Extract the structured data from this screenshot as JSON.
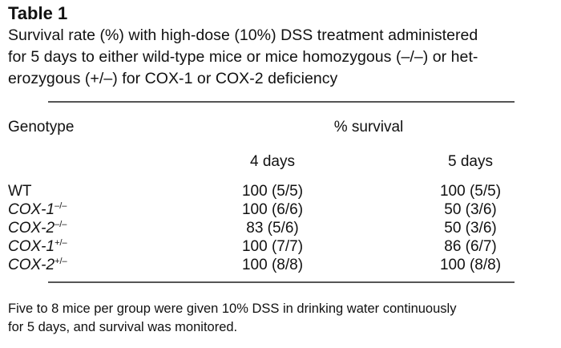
{
  "title": "Table 1",
  "caption": [
    "Survival rate (%) with high-dose (10%) DSS treatment administered",
    "for 5 days to either wild-type mice or mice homozygous (–/–) or het-",
    "erozygous (+/–) for COX-1 or COX-2 deficiency"
  ],
  "table": {
    "header": {
      "genotype": "Genotype",
      "group": "% survival",
      "col4": "4 days",
      "col5": "5 days"
    },
    "rows": [
      {
        "name": "WT",
        "sup": "",
        "italic": false,
        "d4": "100 (5/5)",
        "d5": "100 (5/5)"
      },
      {
        "name": "COX-1",
        "sup": "–/–",
        "italic": true,
        "d4": "100 (6/6)",
        "d5": "50 (3/6)"
      },
      {
        "name": "COX-2",
        "sup": "–/–",
        "italic": true,
        "d4": "83 (5/6)",
        "d5": "50 (3/6)"
      },
      {
        "name": "COX-1",
        "sup": "+/–",
        "italic": true,
        "d4": "100 (7/7)",
        "d5": "86 (6/7)"
      },
      {
        "name": "COX-2",
        "sup": "+/–",
        "italic": true,
        "d4": "100 (8/8)",
        "d5": "100 (8/8)"
      }
    ]
  },
  "footnote": [
    "Five to 8 mice per group were given 10% DSS in drinking water continuously",
    "for 5 days, and survival was monitored."
  ]
}
